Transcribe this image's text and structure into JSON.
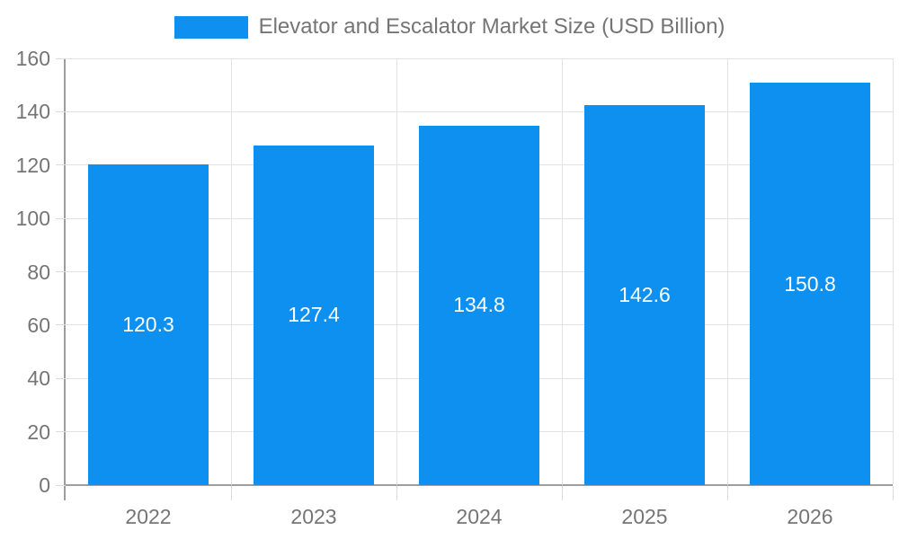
{
  "legend": {
    "label": "Elevator and Escalator Market Size (USD Billion)"
  },
  "colors": {
    "bar": "#0e90f0",
    "axis_text": "#757575",
    "value_label": "#ffffff",
    "gridline": "#e3e3e3",
    "axis_line": "#9e9e9e"
  },
  "chart_data": {
    "type": "bar",
    "title": "Elevator and Escalator Market Size (USD Billion)",
    "categories": [
      "2022",
      "2023",
      "2024",
      "2025",
      "2026"
    ],
    "values": [
      120.3,
      127.4,
      134.8,
      142.6,
      150.8
    ],
    "value_labels": [
      "120.3",
      "127.4",
      "134.8",
      "142.6",
      "150.8"
    ],
    "xlabel": "",
    "ylabel": "",
    "ylim": [
      0,
      160
    ],
    "ytick_step": 20,
    "ytick_labels": [
      "0",
      "20",
      "40",
      "60",
      "80",
      "100",
      "120",
      "140",
      "160"
    ],
    "grid": true,
    "legend_position": "top",
    "bar_color": "#0e90f0"
  }
}
